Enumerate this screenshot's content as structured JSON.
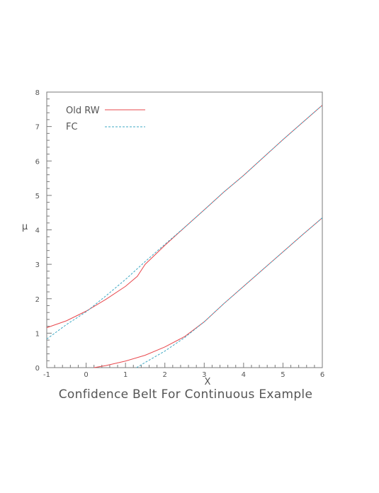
{
  "chart_data": {
    "type": "line",
    "title": "Confidence Belt For Continuous Example",
    "xlabel": "X",
    "ylabel": "μ",
    "xlim": [
      -1,
      6
    ],
    "ylim": [
      0,
      8
    ],
    "x_ticks": [
      -1,
      0,
      1,
      2,
      3,
      4,
      5,
      6
    ],
    "y_ticks": [
      0,
      1,
      2,
      3,
      4,
      5,
      6,
      7,
      8
    ],
    "grid": false,
    "legend_position": "top-left",
    "series": [
      {
        "name": "Old RW",
        "color": "#e8484d",
        "style": "solid",
        "segments": [
          [
            [
              -1,
              1.16
            ],
            [
              -0.5,
              1.36
            ],
            [
              0,
              1.64
            ],
            [
              0.5,
              1.98
            ],
            [
              1,
              2.36
            ],
            [
              1.3,
              2.65
            ],
            [
              1.5,
              3.0
            ],
            [
              2,
              3.55
            ],
            [
              2.5,
              4.07
            ],
            [
              3,
              4.58
            ],
            [
              3.5,
              5.1
            ],
            [
              4,
              5.58
            ],
            [
              4.5,
              6.1
            ],
            [
              5,
              6.62
            ],
            [
              5.5,
              7.12
            ],
            [
              6,
              7.62
            ]
          ],
          [
            [
              0.2,
              0.0
            ],
            [
              0.5,
              0.06
            ],
            [
              1,
              0.19
            ],
            [
              1.5,
              0.36
            ],
            [
              2,
              0.6
            ],
            [
              2.5,
              0.9
            ],
            [
              3,
              1.33
            ],
            [
              3.5,
              1.86
            ],
            [
              4,
              2.36
            ],
            [
              4.5,
              2.86
            ],
            [
              5,
              3.36
            ],
            [
              5.5,
              3.86
            ],
            [
              6,
              4.35
            ]
          ]
        ]
      },
      {
        "name": "FC",
        "color": "#3fa9c4",
        "style": "dashed",
        "segments": [
          [
            [
              -1,
              0.83
            ],
            [
              -0.5,
              1.25
            ],
            [
              0,
              1.62
            ],
            [
              0.5,
              2.08
            ],
            [
              1,
              2.56
            ],
            [
              1.5,
              3.08
            ],
            [
              2,
              3.58
            ],
            [
              2.5,
              4.07
            ],
            [
              3,
              4.58
            ],
            [
              3.5,
              5.1
            ],
            [
              4,
              5.58
            ],
            [
              4.5,
              6.1
            ],
            [
              5,
              6.62
            ],
            [
              5.5,
              7.12
            ],
            [
              6,
              7.62
            ]
          ],
          [
            [
              1.28,
              0.0
            ],
            [
              1.5,
              0.15
            ],
            [
              2,
              0.48
            ],
            [
              2.5,
              0.87
            ],
            [
              3,
              1.33
            ],
            [
              3.5,
              1.86
            ],
            [
              4,
              2.36
            ],
            [
              4.5,
              2.86
            ],
            [
              5,
              3.36
            ],
            [
              5.5,
              3.86
            ],
            [
              6,
              4.35
            ]
          ]
        ]
      }
    ]
  }
}
